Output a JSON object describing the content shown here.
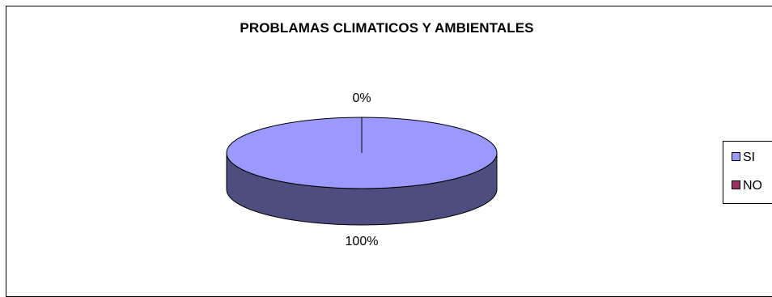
{
  "chart_data": {
    "type": "pie",
    "title": "PROBLAMAS CLIMATICOS Y AMBIENTALES",
    "categories": [
      "SI",
      "NO"
    ],
    "values": [
      100,
      0
    ],
    "data_labels": [
      "100%",
      "0%"
    ],
    "legend": {
      "placement": "right",
      "entries": [
        "SI",
        "NO"
      ]
    },
    "colors": {
      "SI": "#9999ff",
      "SI_side": "#4d4d80",
      "NO": "#993366"
    },
    "style": "3d"
  }
}
